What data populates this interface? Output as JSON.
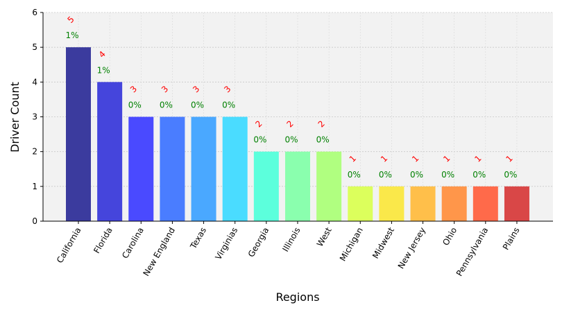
{
  "chart_data": {
    "type": "bar",
    "categories": [
      "California",
      "Florida",
      "Carolina",
      "New England",
      "Texas",
      "Virginias",
      "Georgia",
      "Illinois",
      "West",
      "Michigan",
      "Midwest",
      "New Jersey",
      "Ohio",
      "Pennsylvania",
      "Plains"
    ],
    "values": [
      5,
      4,
      3,
      3,
      3,
      3,
      2,
      2,
      2,
      1,
      1,
      1,
      1,
      1,
      1
    ],
    "count_labels": [
      "5",
      "4",
      "3",
      "3",
      "3",
      "3",
      "2",
      "2",
      "2",
      "1",
      "1",
      "1",
      "1",
      "1",
      "1"
    ],
    "percent_labels": [
      "1%",
      "1%",
      "0%",
      "0%",
      "0%",
      "0%",
      "0%",
      "0%",
      "0%",
      "0%",
      "0%",
      "0%",
      "0%",
      "0%",
      "0%"
    ],
    "colors": [
      "#3b3b9e",
      "#4545dc",
      "#4a4aff",
      "#4a7dff",
      "#4aa8ff",
      "#4adcff",
      "#5cffdc",
      "#8affae",
      "#b0ff80",
      "#dcff5c",
      "#fae84a",
      "#ffbf4a",
      "#ff964a",
      "#ff6a4a",
      "#d94747"
    ],
    "title": "",
    "xlabel": "Regions",
    "ylabel": "Driver Count",
    "ylim": [
      0,
      6
    ],
    "yticks": [
      "0",
      "1",
      "2",
      "3",
      "4",
      "5",
      "6"
    ],
    "grid": true,
    "plot_background": "#f2f2f2"
  }
}
